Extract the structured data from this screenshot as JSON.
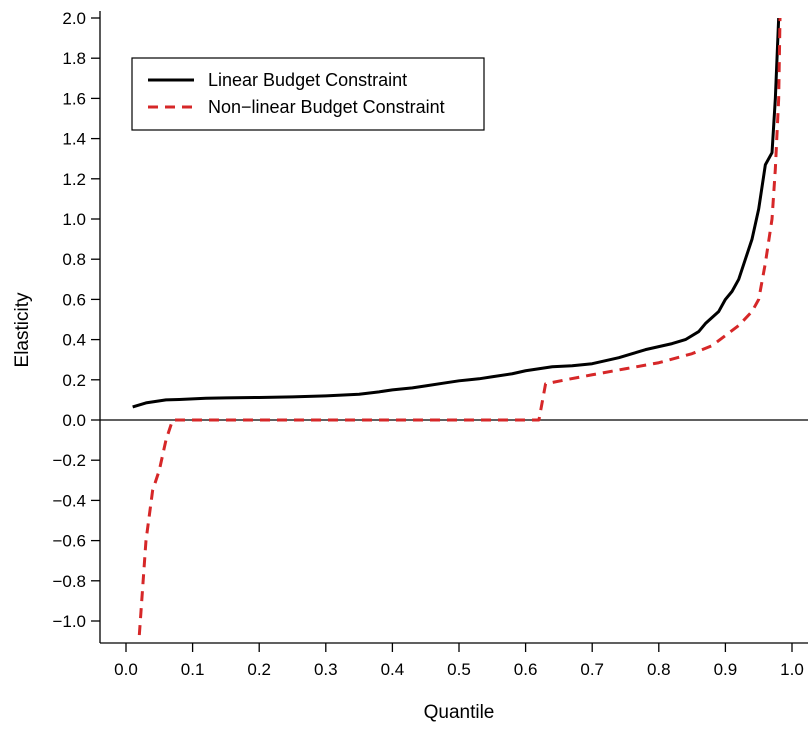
{
  "chart_data": {
    "type": "line",
    "title": "",
    "xlabel": "Quantile",
    "ylabel": "Elasticity",
    "xlim": [
      0.0,
      1.0
    ],
    "ylim": [
      -1.1,
      2.0
    ],
    "xticks": [
      "0.0",
      "0.1",
      "0.2",
      "0.3",
      "0.4",
      "0.5",
      "0.6",
      "0.7",
      "0.8",
      "0.9",
      "1.0"
    ],
    "yticks": [
      "-1.0",
      "-0.8",
      "-0.6",
      "-0.4",
      "-0.2",
      "0.0",
      "0.2",
      "0.4",
      "0.6",
      "0.8",
      "1.0",
      "1.2",
      "1.4",
      "1.6",
      "1.8",
      "2.0"
    ],
    "reference_line_y": 0.0,
    "legend_position": "top-left",
    "series": [
      {
        "name": "Linear Budget Constraint",
        "color": "#000000",
        "style": "solid",
        "points": [
          [
            0.01,
            0.065
          ],
          [
            0.02,
            0.075
          ],
          [
            0.03,
            0.085
          ],
          [
            0.04,
            0.09
          ],
          [
            0.05,
            0.095
          ],
          [
            0.06,
            0.1
          ],
          [
            0.08,
            0.102
          ],
          [
            0.1,
            0.105
          ],
          [
            0.12,
            0.108
          ],
          [
            0.15,
            0.11
          ],
          [
            0.2,
            0.112
          ],
          [
            0.25,
            0.115
          ],
          [
            0.3,
            0.12
          ],
          [
            0.35,
            0.128
          ],
          [
            0.38,
            0.14
          ],
          [
            0.4,
            0.15
          ],
          [
            0.43,
            0.16
          ],
          [
            0.45,
            0.17
          ],
          [
            0.48,
            0.185
          ],
          [
            0.5,
            0.195
          ],
          [
            0.53,
            0.205
          ],
          [
            0.55,
            0.215
          ],
          [
            0.58,
            0.23
          ],
          [
            0.6,
            0.245
          ],
          [
            0.62,
            0.255
          ],
          [
            0.64,
            0.265
          ],
          [
            0.67,
            0.27
          ],
          [
            0.7,
            0.28
          ],
          [
            0.72,
            0.295
          ],
          [
            0.74,
            0.31
          ],
          [
            0.76,
            0.33
          ],
          [
            0.78,
            0.35
          ],
          [
            0.8,
            0.365
          ],
          [
            0.82,
            0.38
          ],
          [
            0.84,
            0.4
          ],
          [
            0.86,
            0.44
          ],
          [
            0.87,
            0.48
          ],
          [
            0.88,
            0.51
          ],
          [
            0.89,
            0.54
          ],
          [
            0.9,
            0.6
          ],
          [
            0.91,
            0.64
          ],
          [
            0.92,
            0.7
          ],
          [
            0.93,
            0.8
          ],
          [
            0.94,
            0.9
          ],
          [
            0.95,
            1.05
          ],
          [
            0.96,
            1.27
          ],
          [
            0.97,
            1.33
          ],
          [
            0.975,
            1.6
          ],
          [
            0.98,
            2.0
          ]
        ]
      },
      {
        "name": "Non-linear Budget Constraint",
        "color": "#d62728",
        "style": "dashed",
        "points": [
          [
            0.02,
            -1.07
          ],
          [
            0.03,
            -0.6
          ],
          [
            0.04,
            -0.35
          ],
          [
            0.05,
            -0.25
          ],
          [
            0.06,
            -0.1
          ],
          [
            0.07,
            0.0
          ],
          [
            0.1,
            0.0
          ],
          [
            0.2,
            0.0
          ],
          [
            0.3,
            0.0
          ],
          [
            0.4,
            0.0
          ],
          [
            0.5,
            0.0
          ],
          [
            0.61,
            0.0
          ],
          [
            0.62,
            0.0
          ],
          [
            0.63,
            0.18
          ],
          [
            0.66,
            0.2
          ],
          [
            0.7,
            0.225
          ],
          [
            0.75,
            0.255
          ],
          [
            0.8,
            0.285
          ],
          [
            0.85,
            0.33
          ],
          [
            0.88,
            0.37
          ],
          [
            0.9,
            0.42
          ],
          [
            0.92,
            0.47
          ],
          [
            0.94,
            0.54
          ],
          [
            0.95,
            0.6
          ],
          [
            0.96,
            0.78
          ],
          [
            0.97,
            1.0
          ],
          [
            0.975,
            1.25
          ],
          [
            0.98,
            1.6
          ],
          [
            0.982,
            2.0
          ]
        ]
      }
    ]
  }
}
